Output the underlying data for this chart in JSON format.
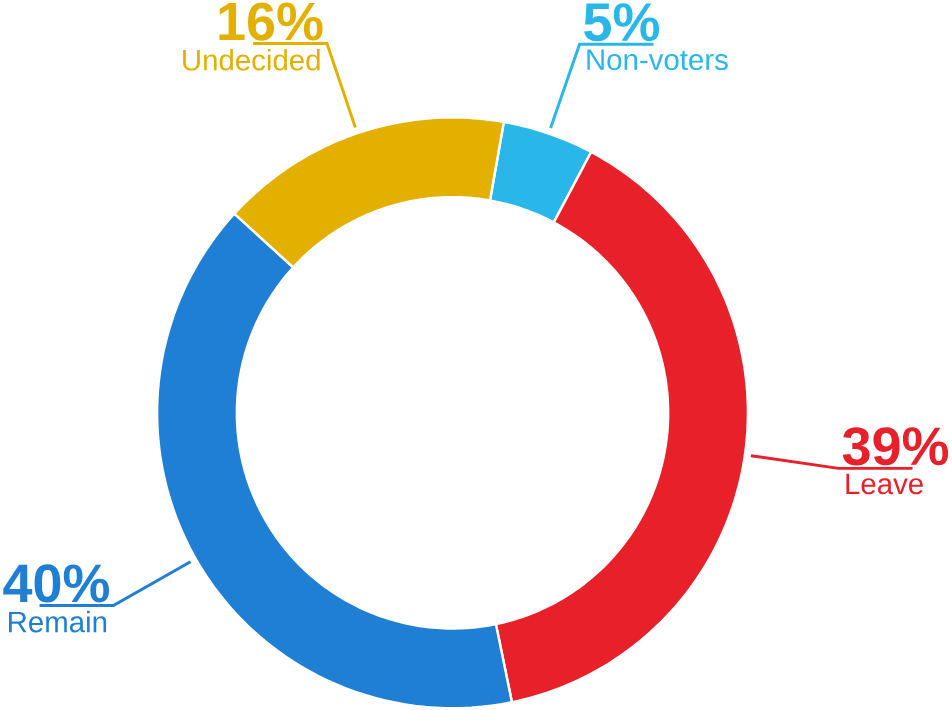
{
  "chart_data": {
    "type": "donut",
    "categories": [
      "Non-voters",
      "Leave",
      "Remain",
      "Undecided"
    ],
    "values": [
      5,
      39,
      40,
      16
    ],
    "colors": [
      "#29b6e8",
      "#e8202a",
      "#1f7fd4",
      "#e3b000"
    ],
    "data_labels": true,
    "value_labels": [
      "5%",
      "39%",
      "40%",
      "16%"
    ]
  }
}
